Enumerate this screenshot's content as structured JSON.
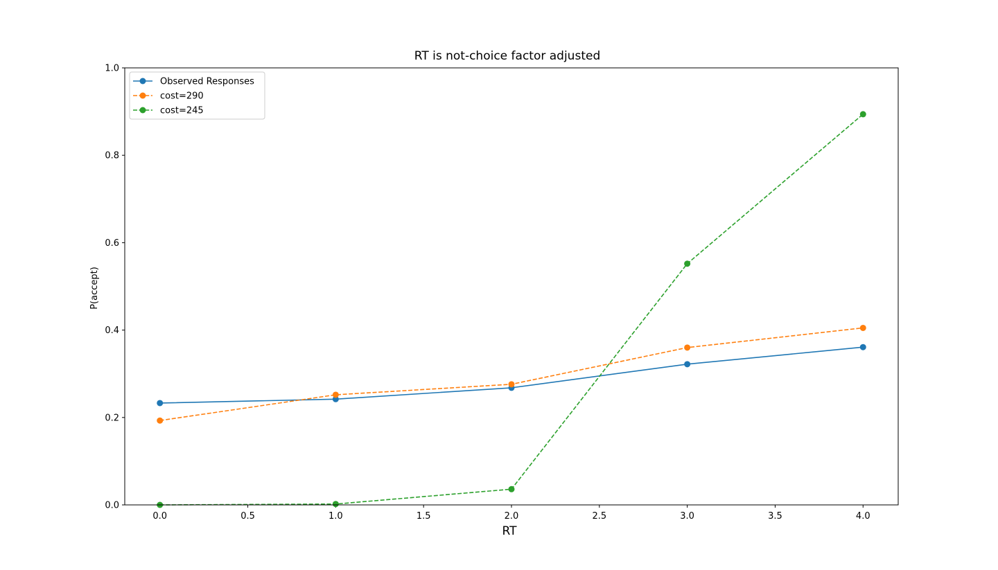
{
  "chart_data": {
    "type": "line",
    "title": "RT is not-choice factor adjusted",
    "xlabel": "RT",
    "ylabel": "P(accept)",
    "xlim": [
      -0.2,
      4.2
    ],
    "ylim": [
      0.0,
      1.0
    ],
    "xticks": [
      0.0,
      0.5,
      1.0,
      1.5,
      2.0,
      2.5,
      3.0,
      3.5,
      4.0
    ],
    "xtick_labels": [
      "0.0",
      "0.5",
      "1.0",
      "1.5",
      "2.0",
      "2.5",
      "3.0",
      "3.5",
      "4.0"
    ],
    "yticks": [
      0.0,
      0.2,
      0.4,
      0.6,
      0.8,
      1.0
    ],
    "ytick_labels": [
      "0.0",
      "0.2",
      "0.4",
      "0.6",
      "0.8",
      "1.0"
    ],
    "grid": false,
    "legend_position": "top-left",
    "x": [
      0,
      1,
      2,
      3,
      4
    ],
    "series": [
      {
        "name": "Observed Responses",
        "color": "#1f77b4",
        "linestyle": "solid",
        "marker": "circle",
        "values": [
          0.233,
          0.242,
          0.268,
          0.322,
          0.361
        ]
      },
      {
        "name": "cost=290",
        "color": "#ff7f0e",
        "linestyle": "dashed",
        "marker": "circle",
        "values": [
          0.193,
          0.252,
          0.276,
          0.36,
          0.405
        ]
      },
      {
        "name": "cost=245",
        "color": "#2ca02c",
        "linestyle": "dashed",
        "marker": "circle",
        "values": [
          0.0,
          0.002,
          0.036,
          0.552,
          0.894
        ]
      }
    ]
  }
}
